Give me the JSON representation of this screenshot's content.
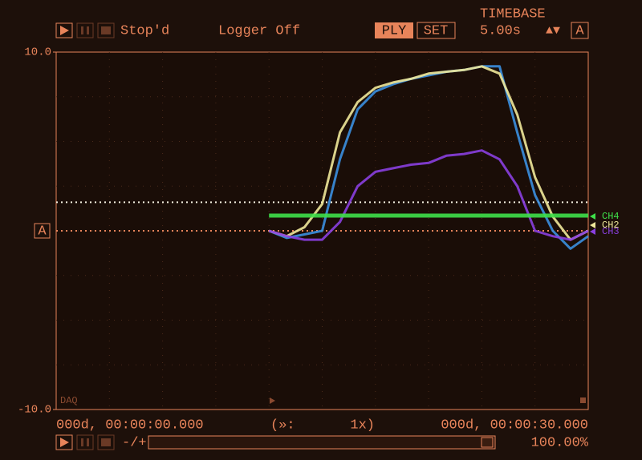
{
  "toolbar": {
    "status": "Stop'd",
    "logger": "Logger Off",
    "ply": "PLY",
    "set": "SET",
    "timebase_label": "TIMEBASE",
    "timebase": "5.00s",
    "arrows": "▲▼",
    "auto": "A"
  },
  "chart_data": {
    "type": "line",
    "ylim": [
      -10,
      10
    ],
    "yticks": [
      {
        "value": 10,
        "label": "10.0"
      },
      {
        "value": -10,
        "label": "-10.0"
      }
    ],
    "xlim": [
      0,
      30
    ],
    "x": [
      12,
      13,
      14,
      15,
      16,
      17,
      18,
      19,
      20,
      21,
      22,
      23,
      24,
      25,
      26,
      27,
      28,
      29,
      30
    ],
    "series": [
      {
        "color": "#3b8fe0",
        "values": [
          0,
          -0.4,
          -0.2,
          0,
          4,
          6.8,
          7.8,
          8.2,
          8.5,
          8.7,
          8.9,
          9,
          9.2,
          9.2,
          5.5,
          2,
          0,
          -1,
          -0.3
        ]
      },
      {
        "name": "CH2",
        "color": "#f0e89a",
        "values": [
          0,
          -0.3,
          0.2,
          1.5,
          5.5,
          7.2,
          8,
          8.3,
          8.5,
          8.8,
          8.9,
          9,
          9.2,
          8.8,
          6.5,
          3,
          0.8,
          -0.5,
          0
        ]
      },
      {
        "name": "CH3",
        "color": "#8a3fe0",
        "values": [
          0,
          -0.3,
          -0.5,
          -0.5,
          0.5,
          2.5,
          3.3,
          3.5,
          3.7,
          3.8,
          4.2,
          4.3,
          4.5,
          4,
          2.5,
          0,
          -0.3,
          -0.5,
          0
        ]
      },
      {
        "name": "CH4",
        "color": "#3ee04a",
        "values": [
          0.85,
          0.85,
          0.85,
          0.85,
          0.85,
          0.85,
          0.85,
          0.85,
          0.85,
          0.85,
          0.85,
          0.85,
          0.85,
          0.85,
          0.85,
          0.85,
          0.85,
          0.85,
          0.85
        ]
      }
    ],
    "levels": [
      {
        "value": 1.6,
        "color": "#f4f0e0"
      },
      {
        "value": 0,
        "color": "#e8845a"
      }
    ],
    "trigger_label": "A",
    "corner_label": "DAQ"
  },
  "timeline": {
    "start": "000d, 00:00:00.000",
    "speed_open": "(»:",
    "speed": "1x)",
    "end": "000d, 00:00:30.000",
    "zoom": "-/+",
    "percent": "100.00%"
  }
}
